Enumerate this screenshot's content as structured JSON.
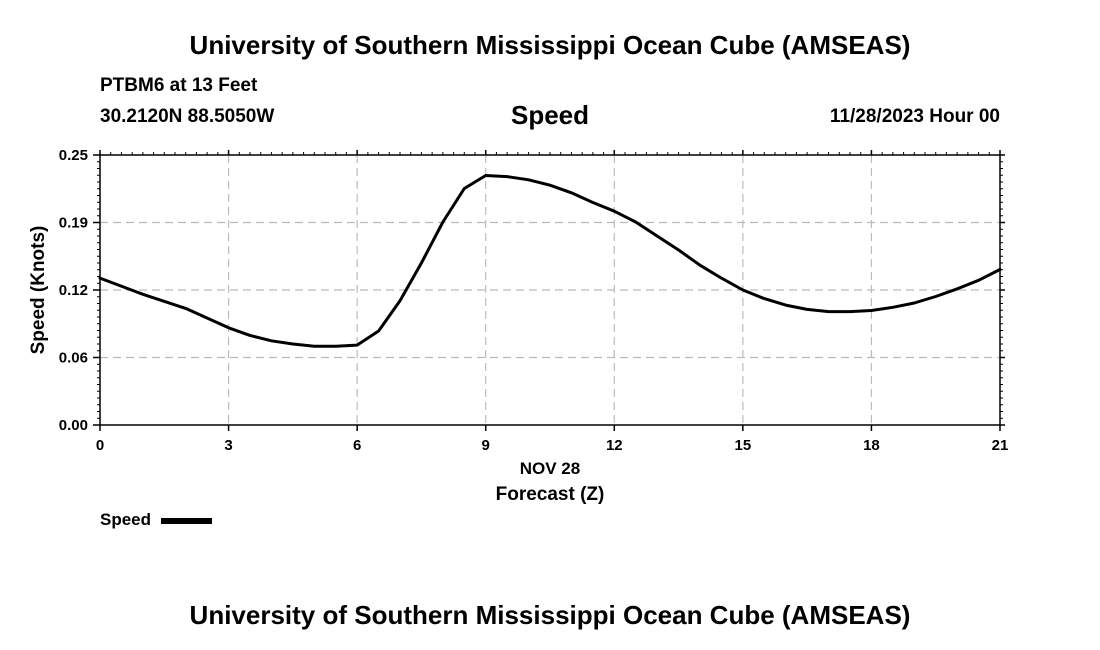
{
  "header": {
    "title": "University of Southern Mississippi Ocean Cube (AMSEAS)",
    "station": "PTBM6 at 13 Feet",
    "location": "30.2120N  88.5050W",
    "variable": "Speed",
    "datetime": "11/28/2023 Hour 00"
  },
  "footer": {
    "title": "University of Southern Mississippi Ocean Cube (AMSEAS)"
  },
  "legend": {
    "label": "Speed",
    "color": "#000000"
  },
  "chart_data": {
    "type": "line",
    "title": "Speed",
    "xlabel": "Forecast (Z)",
    "xsublabel": "NOV 28",
    "ylabel": "Speed (Knots)",
    "xlim": [
      0,
      21
    ],
    "ylim": [
      0,
      0.25
    ],
    "xticks": [
      0,
      3,
      6,
      9,
      12,
      15,
      18,
      21
    ],
    "xtick_labels": [
      "0",
      "3",
      "6",
      "9",
      "12",
      "15",
      "18",
      "21"
    ],
    "yticks": [
      0.0,
      0.0625,
      0.125,
      0.1875,
      0.25
    ],
    "ytick_labels": [
      "0.00",
      "0.06",
      "0.12",
      "0.19",
      "0.25"
    ],
    "grid": true,
    "legend_position": "bottom-left",
    "series": [
      {
        "name": "Speed",
        "color": "#000000",
        "x": [
          0,
          1,
          2,
          3,
          3.5,
          4,
          4.5,
          5,
          5.5,
          6,
          6.5,
          7,
          7.5,
          8,
          8.5,
          9,
          9.5,
          10,
          10.5,
          11,
          11.5,
          12,
          12.5,
          13,
          13.5,
          14,
          14.5,
          15,
          15.5,
          16,
          16.5,
          17,
          17.5,
          18,
          18.5,
          19,
          19.5,
          20,
          20.5,
          21
        ],
        "values": [
          0.136,
          0.121,
          0.108,
          0.09,
          0.083,
          0.078,
          0.075,
          0.073,
          0.073,
          0.074,
          0.087,
          0.115,
          0.15,
          0.188,
          0.219,
          0.231,
          0.23,
          0.227,
          0.222,
          0.215,
          0.206,
          0.198,
          0.188,
          0.175,
          0.162,
          0.148,
          0.136,
          0.125,
          0.117,
          0.111,
          0.107,
          0.105,
          0.105,
          0.106,
          0.109,
          0.113,
          0.119,
          0.126,
          0.134,
          0.144
        ]
      }
    ]
  }
}
